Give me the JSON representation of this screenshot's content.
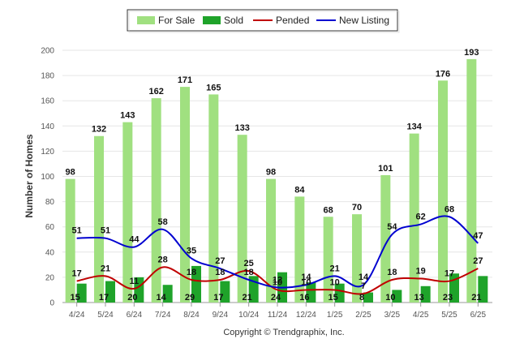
{
  "chart_data": {
    "type": "bar",
    "categories": [
      "4/24",
      "5/24",
      "6/24",
      "7/24",
      "8/24",
      "9/24",
      "10/24",
      "11/24",
      "12/24",
      "1/25",
      "2/25",
      "3/25",
      "4/25",
      "5/25",
      "6/25"
    ],
    "series": [
      {
        "name": "For Sale",
        "kind": "bar",
        "color": "#a0e080",
        "values": [
          98,
          132,
          143,
          162,
          171,
          165,
          133,
          98,
          84,
          68,
          70,
          101,
          134,
          176,
          193
        ]
      },
      {
        "name": "Sold",
        "kind": "bar",
        "color": "#1fa32a",
        "values": [
          15,
          17,
          20,
          14,
          29,
          17,
          21,
          24,
          16,
          15,
          8,
          10,
          13,
          23,
          21
        ]
      },
      {
        "name": "Pended",
        "kind": "line",
        "color": "#c00000",
        "values": [
          17,
          21,
          11,
          28,
          18,
          18,
          25,
          10,
          10,
          10,
          7,
          18,
          19,
          17,
          27
        ]
      },
      {
        "name": "New Listing",
        "kind": "line",
        "color": "#0000d0",
        "values": [
          51,
          51,
          44,
          58,
          35,
          27,
          18,
          12,
          14,
          21,
          14,
          54,
          62,
          68,
          47
        ]
      }
    ],
    "title": "",
    "xlabel": "",
    "ylabel": "Number of Homes",
    "ylim": [
      0,
      200
    ],
    "yticks": [
      0,
      20,
      40,
      60,
      80,
      100,
      120,
      140,
      160,
      180,
      200
    ],
    "grid": true,
    "legend_position": "top-center",
    "credit": "Copyright © Trendgraphix, Inc."
  }
}
